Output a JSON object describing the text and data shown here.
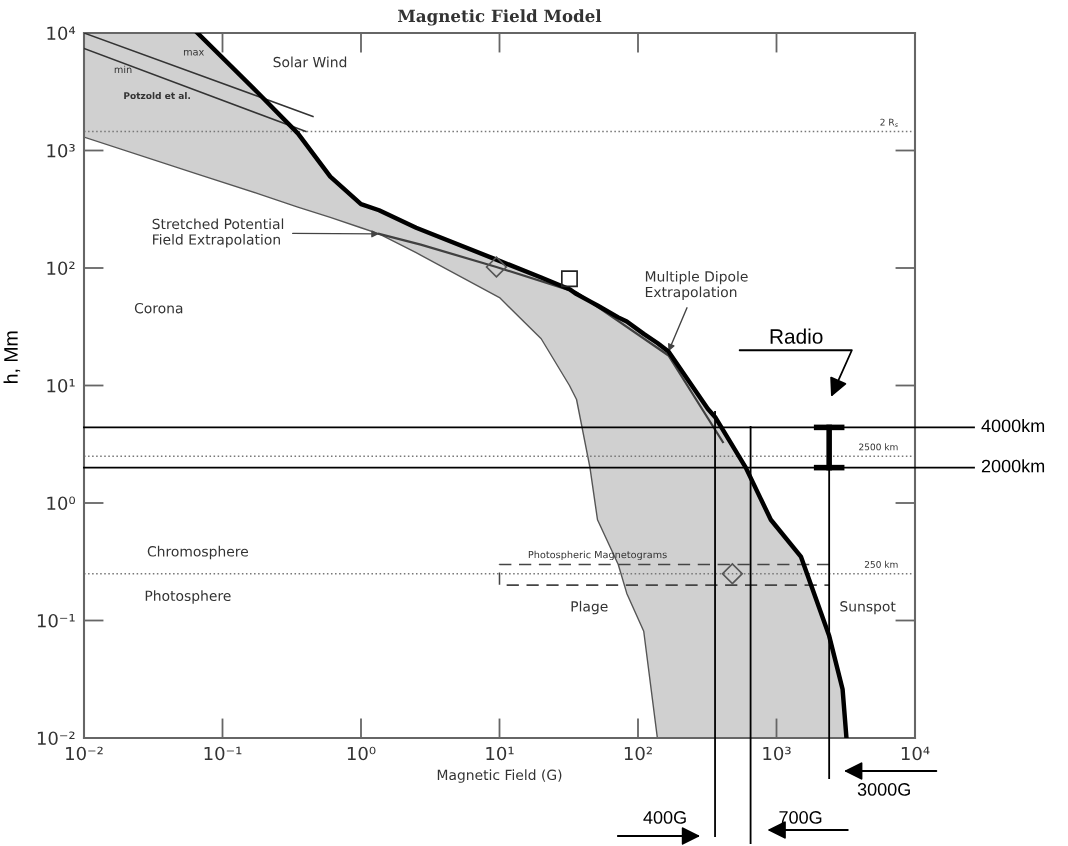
{
  "chart_data": {
    "type": "line",
    "title": "Magnetic Field Model",
    "xlabel": "Magnetic Field (G)",
    "ylabel": "h, Mm",
    "log": "xy",
    "xlim": [
      0.01,
      10000
    ],
    "ylim": [
      0.01,
      10000
    ],
    "xticks": [
      {
        "value": 0.01,
        "label": "10⁻²"
      },
      {
        "value": 0.1,
        "label": "10⁻¹"
      },
      {
        "value": 1,
        "label": "10⁰"
      },
      {
        "value": 10,
        "label": "10¹"
      },
      {
        "value": 100,
        "label": "10²"
      },
      {
        "value": 1000,
        "label": "10³"
      },
      {
        "value": 10000,
        "label": "10⁴"
      }
    ],
    "yticks": [
      {
        "value": 0.01,
        "label": "10⁻²"
      },
      {
        "value": 0.1,
        "label": "10⁻¹"
      },
      {
        "value": 1,
        "label": "10⁰"
      },
      {
        "value": 10,
        "label": "10¹"
      },
      {
        "value": 100,
        "label": "10²"
      },
      {
        "value": 1000,
        "label": "10³"
      },
      {
        "value": 10000,
        "label": "10⁴"
      }
    ],
    "grid": false,
    "series": [
      {
        "color": "#000000",
        "line_style": "solid",
        "x": [
          0.01,
          0.066,
          0.18,
          0.35,
          0.6,
          1.0,
          1.35,
          2.5,
          10,
          20,
          32,
          36,
          45,
          51,
          72,
          83,
          110,
          138,
          166,
          320,
          360,
          600,
          910,
          1500,
          2400,
          3000,
          3200
        ],
        "values": [
          null,
          10000,
          3100,
          1400,
          600,
          350,
          310,
          220,
          115,
          83,
          66,
          60,
          52,
          48,
          38,
          35,
          27.5,
          23,
          19.5,
          6.3,
          5.4,
          2.0,
          0.72,
          0.35,
          0.074,
          0.026,
          0.01
        ],
        "upper": [
          10000,
          10000,
          3100,
          1400,
          600,
          350,
          310,
          220,
          115,
          83,
          66,
          60,
          52,
          48,
          38,
          35,
          27.5,
          23,
          19.5,
          6.3,
          5.4,
          2.0,
          0.72,
          0.35,
          0.074,
          0.026,
          0.01
        ],
        "lower": [
          1300,
          630,
          430,
          330,
          270,
          220,
          195,
          135,
          56,
          25,
          10,
          7.6,
          2.0,
          0.72,
          0.3,
          0.17,
          0.081,
          0.01,
          0.01,
          0.01,
          0.01,
          0.01,
          0.01,
          0.01,
          0.01,
          0.01,
          0.01
        ]
      },
      {
        "color": "#404040",
        "line_style": "solid",
        "x": [
          1.35,
          2.7,
          9.5,
          36,
          166,
          410
        ],
        "values": [
          195,
          158,
          102,
          62,
          18,
          3.3
        ]
      },
      {
        "color": "#333333",
        "line_style": "solid",
        "x": [
          0.01,
          0.45
        ],
        "values": [
          10000,
          1950
        ]
      },
      {
        "color": "#333333",
        "line_style": "solid",
        "x": [
          0.01,
          0.4
        ],
        "values": [
          7400,
          1450
        ]
      },
      {
        "color": "#444444",
        "line_style": "dashed",
        "x": [
          2400,
          10,
          10,
          2400
        ],
        "values": [
          0.3,
          0.3,
          0.2,
          0.2
        ]
      },
      {
        "type": "scatter",
        "color": "#555555",
        "marker": "diamond",
        "x": [
          9.5,
          480
        ],
        "values": [
          102,
          0.25
        ]
      },
      {
        "type": "scatter",
        "color": "#222222",
        "marker": "square",
        "x": [
          32
        ],
        "values": [
          81
        ]
      },
      {
        "color": "#000000",
        "line_style": "solid",
        "x": [
          2400,
          2400
        ],
        "values": [
          2.0,
          4.4
        ]
      }
    ],
    "ref_lines": [
      {
        "axis": "y",
        "value": 1450,
        "label": "2 R$_{s}$",
        "color": "#777777",
        "line_style": "dotted"
      },
      {
        "axis": "y",
        "value": 2.5,
        "label": "2500 km",
        "color": "#777777",
        "line_style": "dotted"
      },
      {
        "axis": "y",
        "value": 0.25,
        "label": "250 km",
        "color": "#777777",
        "line_style": "dotted"
      },
      {
        "axis": "y",
        "value": 4.4,
        "label": "4000km",
        "color": "#000000",
        "line_style": "solid"
      },
      {
        "axis": "y",
        "value": 2.0,
        "label": "2000km",
        "color": "#000000",
        "line_style": "solid"
      },
      {
        "axis": "x",
        "value": 360,
        "label": "400G",
        "color": "#000000",
        "line_style": "solid"
      },
      {
        "axis": "x",
        "value": 650,
        "label": "700G",
        "color": "#000000",
        "line_style": "solid"
      },
      {
        "axis": "x",
        "value": 2400,
        "label": "3000G",
        "color": "#000000",
        "line_style": "solid"
      }
    ],
    "annotations": [
      "Solar Wind",
      "max",
      "min",
      "Potzold et al.",
      {
        "text": "Stretched Potential\nField Extrapolation",
        "x": 1.35,
        "y": 195
      },
      {
        "text": "Multiple Dipole\nExtrapolation",
        "x": 166,
        "y": 19.5
      },
      "Corona",
      "Chromosphere",
      "Photosphere",
      "Photospheric Magnetograms",
      "Plage",
      "Sunspot",
      "Radio"
    ]
  }
}
